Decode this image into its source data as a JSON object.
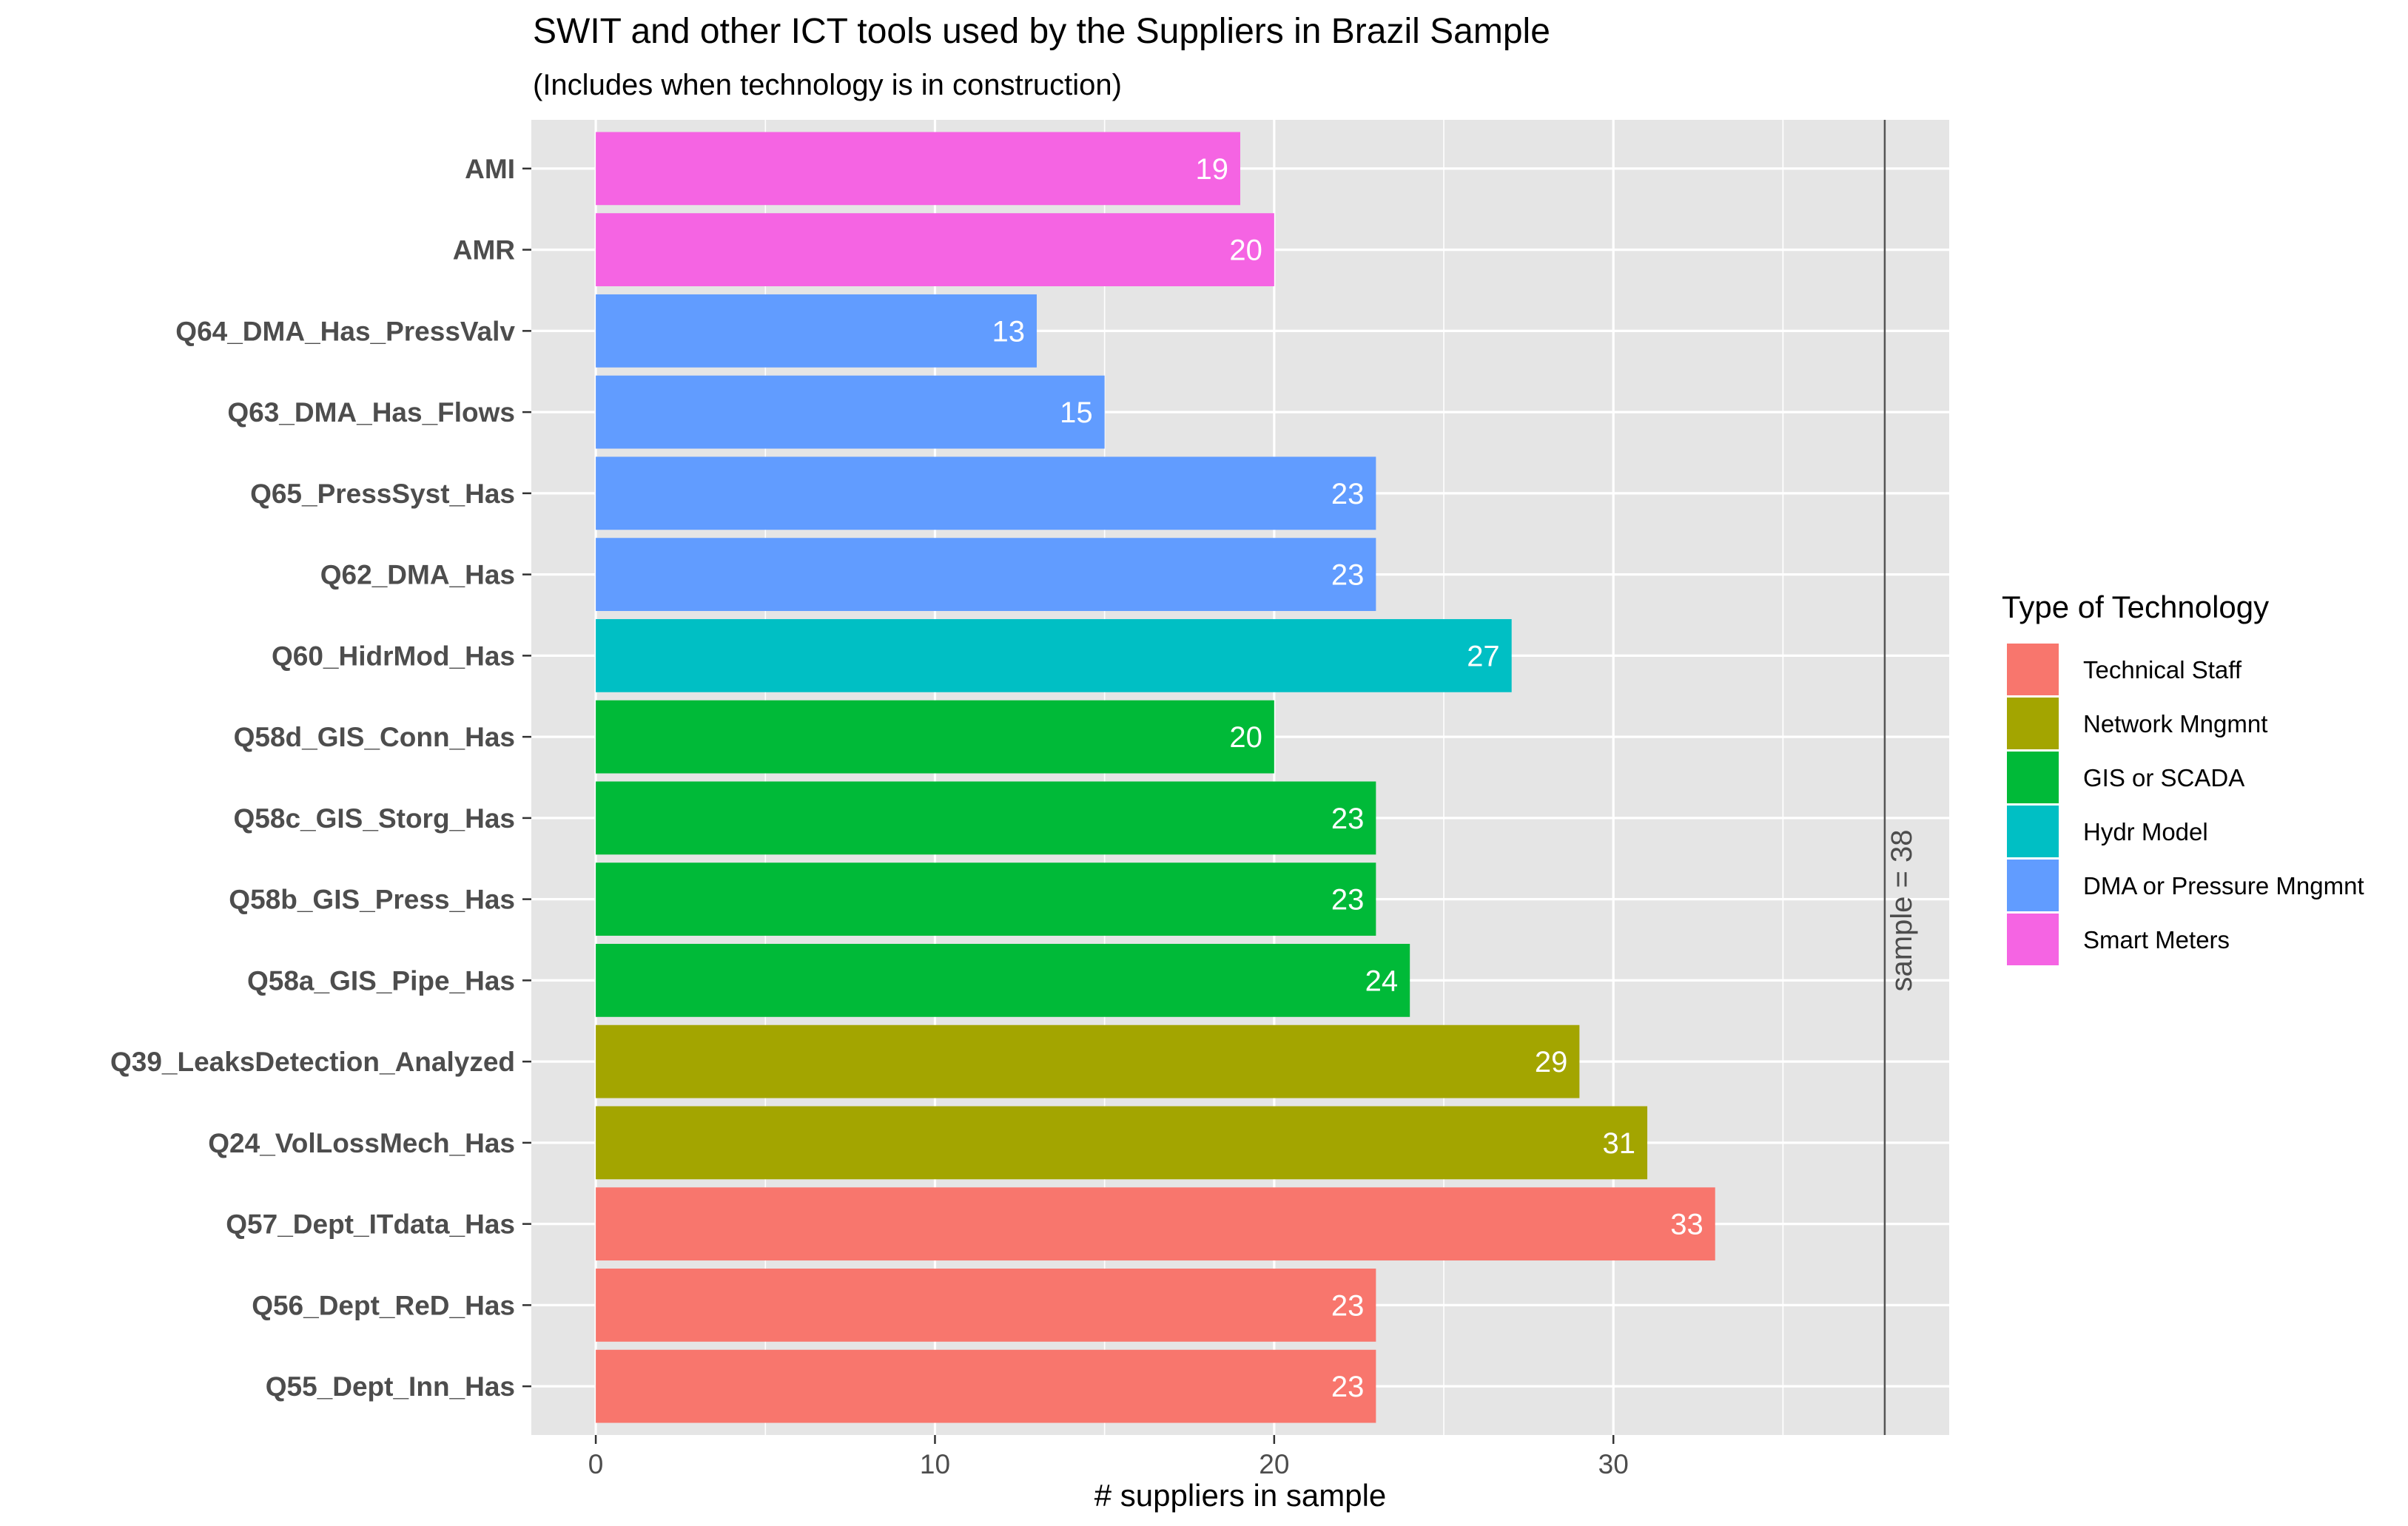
{
  "chart_data": {
    "type": "bar",
    "orientation": "horizontal",
    "title": "SWIT and other ICT tools used by the Suppliers in Brazil Sample",
    "subtitle": "(Includes when technology is in construction)",
    "xlabel": "# suppliers in sample",
    "xlim": [
      -1.9,
      39.9
    ],
    "xticks": [
      0,
      10,
      20,
      30
    ],
    "grid": true,
    "legend_position": "right",
    "legend": {
      "title": "Type of Technology",
      "items": [
        {
          "label": "Technical Staff",
          "color": "#F8766D"
        },
        {
          "label": "Network Mngmnt",
          "color": "#A3A500"
        },
        {
          "label": "GIS or SCADA",
          "color": "#00BA38"
        },
        {
          "label": "Hydr Model",
          "color": "#00BFC4"
        },
        {
          "label": "DMA or Pressure Mngmnt",
          "color": "#619CFF"
        },
        {
          "label": "Smart Meters",
          "color": "#F564E3"
        }
      ]
    },
    "bars": [
      {
        "category": "AMI",
        "value": 19,
        "type_index": 5
      },
      {
        "category": "AMR",
        "value": 20,
        "type_index": 5
      },
      {
        "category": "Q64_DMA_Has_PressValv",
        "value": 13,
        "type_index": 4
      },
      {
        "category": "Q63_DMA_Has_Flows",
        "value": 15,
        "type_index": 4
      },
      {
        "category": "Q65_PressSyst_Has",
        "value": 23,
        "type_index": 4
      },
      {
        "category": "Q62_DMA_Has",
        "value": 23,
        "type_index": 4
      },
      {
        "category": "Q60_HidrMod_Has",
        "value": 27,
        "type_index": 3
      },
      {
        "category": "Q58d_GIS_Conn_Has",
        "value": 20,
        "type_index": 2
      },
      {
        "category": "Q58c_GIS_Storg_Has",
        "value": 23,
        "type_index": 2
      },
      {
        "category": "Q58b_GIS_Press_Has",
        "value": 23,
        "type_index": 2
      },
      {
        "category": "Q58a_GIS_Pipe_Has",
        "value": 24,
        "type_index": 2
      },
      {
        "category": "Q39_LeaksDetection_Analyzed",
        "value": 29,
        "type_index": 1
      },
      {
        "category": "Q24_VolLossMech_Has",
        "value": 31,
        "type_index": 1
      },
      {
        "category": "Q57_Dept_ITdata_Has",
        "value": 33,
        "type_index": 0
      },
      {
        "category": "Q56_Dept_ReD_Has",
        "value": 23,
        "type_index": 0
      },
      {
        "category": "Q55_Dept_Inn_Has",
        "value": 23,
        "type_index": 0
      }
    ],
    "reference_line": {
      "value": 38,
      "label": "sample = 38"
    },
    "colors": {
      "panel_background": "#E5E5E5",
      "grid_line": "#FFFFFF",
      "text": "#000000",
      "axis_text": "#4D4D4D",
      "bar_label": "#FFFFFF",
      "reference_line": "#555555"
    }
  }
}
